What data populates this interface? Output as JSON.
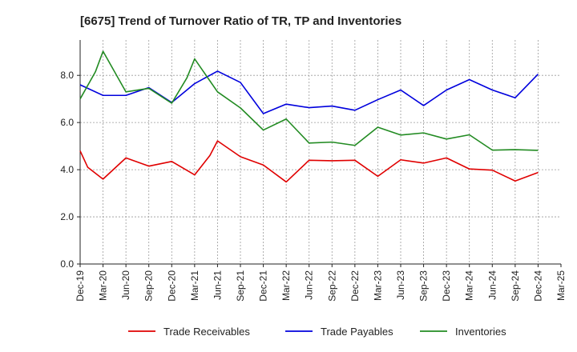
{
  "chart_data": {
    "type": "line",
    "title": "[6675]  Trend of Turnover Ratio of TR, TP and Inventories",
    "xlabel": "",
    "ylabel": "",
    "ylim": [
      0,
      9.5
    ],
    "y_ticks": [
      "0.0",
      "2.0",
      "4.0",
      "6.0",
      "8.0"
    ],
    "y_tick_values": [
      0,
      2,
      4,
      6,
      8
    ],
    "grid": true,
    "legend_position": "bottom",
    "x_tick_labels": [
      "Dec-19",
      "Mar-20",
      "Jun-20",
      "Sep-20",
      "Dec-20",
      "Mar-21",
      "Jun-21",
      "Sep-21",
      "Dec-21",
      "Mar-22",
      "Jun-22",
      "Sep-22",
      "Dec-22",
      "Mar-23",
      "Jun-23",
      "Sep-23",
      "Dec-23",
      "Mar-24",
      "Jun-24",
      "Sep-24",
      "Dec-24",
      "Mar-25"
    ],
    "x_months": [
      "Dec-19",
      "Jan-20",
      "Feb-20",
      "Mar-20",
      "Apr-20",
      "May-20",
      "Jun-20",
      "Jul-20",
      "Aug-20",
      "Sep-20",
      "Oct-20",
      "Nov-20",
      "Dec-20",
      "Jan-21",
      "Feb-21",
      "Mar-21",
      "Apr-21",
      "May-21",
      "Jun-21",
      "Jul-21",
      "Aug-21",
      "Sep-21",
      "Oct-21",
      "Nov-21",
      "Dec-21",
      "Jan-22",
      "Feb-22",
      "Mar-22",
      "Apr-22",
      "May-22",
      "Jun-22",
      "Jul-22",
      "Aug-22",
      "Sep-22",
      "Oct-22",
      "Nov-22",
      "Dec-22",
      "Jan-23",
      "Feb-23",
      "Mar-23",
      "Apr-23",
      "May-23",
      "Jun-23",
      "Jul-23",
      "Aug-23",
      "Sep-23",
      "Oct-23",
      "Nov-23",
      "Dec-23",
      "Jan-24",
      "Feb-24",
      "Mar-24",
      "Apr-24",
      "May-24",
      "Jun-24",
      "Jul-24",
      "Aug-24",
      "Sep-24",
      "Oct-24",
      "Nov-24",
      "Dec-24",
      "Jan-25",
      "Feb-25",
      "Mar-25"
    ],
    "series": [
      {
        "name": "Trade Receivables",
        "color": "#e00000",
        "points": [
          {
            "x": "Dec-19",
            "y": 4.8
          },
          {
            "x": "Jan-20",
            "y": 4.1
          },
          {
            "x": "Mar-20",
            "y": 3.6
          },
          {
            "x": "Jun-20",
            "y": 4.5
          },
          {
            "x": "Sep-20",
            "y": 4.15
          },
          {
            "x": "Dec-20",
            "y": 4.35
          },
          {
            "x": "Mar-21",
            "y": 3.78
          },
          {
            "x": "May-21",
            "y": 4.6
          },
          {
            "x": "Jun-21",
            "y": 5.22
          },
          {
            "x": "Sep-21",
            "y": 4.55
          },
          {
            "x": "Dec-21",
            "y": 4.2
          },
          {
            "x": "Mar-22",
            "y": 3.48
          },
          {
            "x": "Jun-22",
            "y": 4.4
          },
          {
            "x": "Sep-22",
            "y": 4.38
          },
          {
            "x": "Dec-22",
            "y": 4.4
          },
          {
            "x": "Mar-23",
            "y": 3.72
          },
          {
            "x": "Jun-23",
            "y": 4.42
          },
          {
            "x": "Sep-23",
            "y": 4.28
          },
          {
            "x": "Dec-23",
            "y": 4.5
          },
          {
            "x": "Mar-24",
            "y": 4.03
          },
          {
            "x": "Jun-24",
            "y": 3.98
          },
          {
            "x": "Sep-24",
            "y": 3.52
          },
          {
            "x": "Dec-24",
            "y": 3.88
          }
        ]
      },
      {
        "name": "Trade Payables",
        "color": "#0000dd",
        "points": [
          {
            "x": "Dec-19",
            "y": 7.6
          },
          {
            "x": "Mar-20",
            "y": 7.15
          },
          {
            "x": "Jun-20",
            "y": 7.15
          },
          {
            "x": "Sep-20",
            "y": 7.48
          },
          {
            "x": "Dec-20",
            "y": 6.85
          },
          {
            "x": "Mar-21",
            "y": 7.65
          },
          {
            "x": "Jun-21",
            "y": 8.18
          },
          {
            "x": "Sep-21",
            "y": 7.7
          },
          {
            "x": "Dec-21",
            "y": 6.38
          },
          {
            "x": "Mar-22",
            "y": 6.78
          },
          {
            "x": "Jun-22",
            "y": 6.63
          },
          {
            "x": "Sep-22",
            "y": 6.7
          },
          {
            "x": "Dec-22",
            "y": 6.52
          },
          {
            "x": "Mar-23",
            "y": 6.97
          },
          {
            "x": "Jun-23",
            "y": 7.38
          },
          {
            "x": "Sep-23",
            "y": 6.72
          },
          {
            "x": "Dec-23",
            "y": 7.38
          },
          {
            "x": "Mar-24",
            "y": 7.82
          },
          {
            "x": "Jun-24",
            "y": 7.38
          },
          {
            "x": "Sep-24",
            "y": 7.05
          },
          {
            "x": "Dec-24",
            "y": 8.05
          }
        ]
      },
      {
        "name": "Inventories",
        "color": "#228b22",
        "points": [
          {
            "x": "Dec-19",
            "y": 7.0
          },
          {
            "x": "Feb-20",
            "y": 8.15
          },
          {
            "x": "Mar-20",
            "y": 9.02
          },
          {
            "x": "Jun-20",
            "y": 7.3
          },
          {
            "x": "Sep-20",
            "y": 7.45
          },
          {
            "x": "Dec-20",
            "y": 6.82
          },
          {
            "x": "Feb-21",
            "y": 7.9
          },
          {
            "x": "Mar-21",
            "y": 8.7
          },
          {
            "x": "Jun-21",
            "y": 7.3
          },
          {
            "x": "Sep-21",
            "y": 6.62
          },
          {
            "x": "Dec-21",
            "y": 5.68
          },
          {
            "x": "Mar-22",
            "y": 6.15
          },
          {
            "x": "Jun-22",
            "y": 5.13
          },
          {
            "x": "Sep-22",
            "y": 5.17
          },
          {
            "x": "Dec-22",
            "y": 5.03
          },
          {
            "x": "Mar-23",
            "y": 5.8
          },
          {
            "x": "Jun-23",
            "y": 5.47
          },
          {
            "x": "Sep-23",
            "y": 5.56
          },
          {
            "x": "Dec-23",
            "y": 5.3
          },
          {
            "x": "Mar-24",
            "y": 5.48
          },
          {
            "x": "Jun-24",
            "y": 4.83
          },
          {
            "x": "Sep-24",
            "y": 4.85
          },
          {
            "x": "Dec-24",
            "y": 4.82
          }
        ]
      }
    ]
  }
}
